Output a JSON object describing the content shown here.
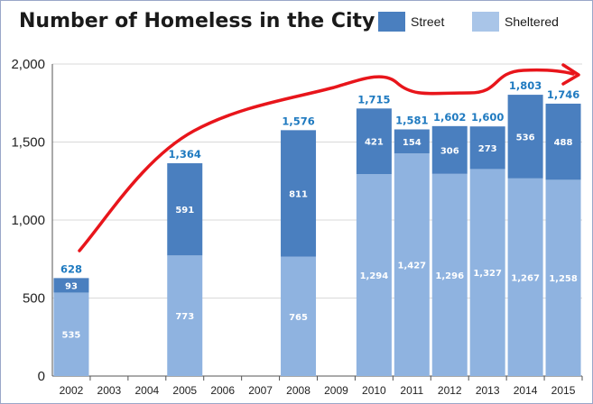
{
  "chart_data": {
    "type": "bar",
    "stacked": true,
    "title": "Number of Homeless in the City",
    "categories": [
      "2002",
      "2003",
      "2004",
      "2005",
      "2006",
      "2007",
      "2008",
      "2009",
      "2010",
      "2011",
      "2012",
      "2013",
      "2014",
      "2015"
    ],
    "series": [
      {
        "name": "Sheltered",
        "color": "#8fb3e0",
        "values": [
          535,
          null,
          null,
          773,
          null,
          null,
          765,
          null,
          1294,
          1427,
          1296,
          1327,
          1267,
          1258
        ],
        "labels": [
          "535",
          "",
          "",
          "773",
          "",
          "",
          "765",
          "",
          "1,294",
          "1,427",
          "1,296",
          "1,327",
          "1,267",
          "1,258"
        ]
      },
      {
        "name": "Street",
        "color": "#4a7fbf",
        "values": [
          93,
          null,
          null,
          591,
          null,
          null,
          811,
          null,
          421,
          154,
          306,
          273,
          536,
          488
        ],
        "labels": [
          "93",
          "",
          "",
          "591",
          "",
          "",
          "811",
          "",
          "421",
          "154",
          "306",
          "273",
          "536",
          "488"
        ]
      }
    ],
    "totals": [
      628,
      null,
      null,
      1364,
      null,
      null,
      1576,
      null,
      1715,
      1581,
      1602,
      1600,
      1803,
      1746
    ],
    "total_labels": [
      "628",
      "",
      "",
      "1,364",
      "",
      "",
      "1,576",
      "",
      "1,715",
      "1,581",
      "1,602",
      "1,600",
      "1,803",
      "1,746"
    ],
    "ylim": [
      0,
      2000
    ],
    "yticks": [
      0,
      500,
      1000,
      1500,
      2000
    ],
    "ytick_labels": [
      "0",
      "500",
      "1,000",
      "1,500",
      "2,000"
    ],
    "grid": true,
    "legend_position": "top-right",
    "trend_arrow_color": "#e8151b"
  }
}
